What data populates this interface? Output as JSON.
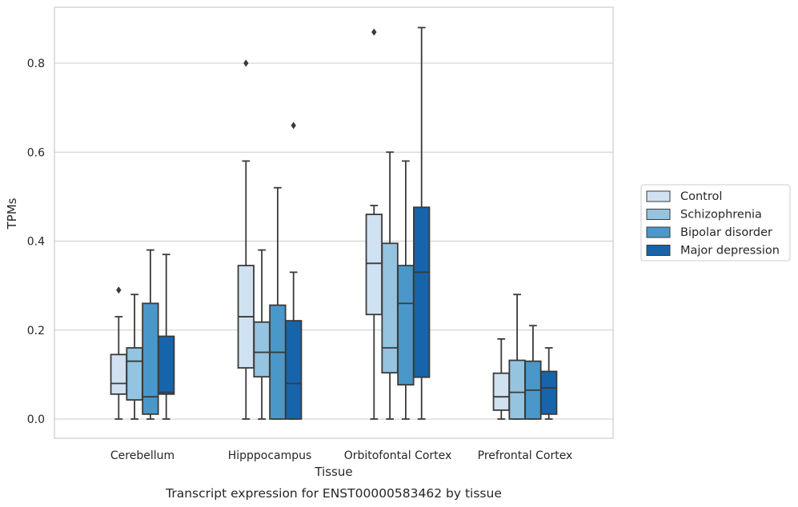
{
  "caption": "Transcript expression for ENST00000583462 by tissue",
  "chart_data": {
    "type": "boxplot",
    "xlabel": "Tissue",
    "ylabel": "TPMs",
    "ylim": [
      -0.04,
      0.93
    ],
    "yticks": [
      0.0,
      0.2,
      0.4,
      0.6,
      0.8
    ],
    "ytick_labels": [
      "0.0",
      "0.2",
      "0.4",
      "0.6",
      "0.8"
    ],
    "grid": "horizontal",
    "legend_position": "right",
    "categories": [
      "Cerebellum",
      "Hipppocampus",
      "Orbitofontal Cortex",
      "Prefrontal Cortex"
    ],
    "series": [
      {
        "name": "Control",
        "color": "#d0e1f2",
        "boxes": [
          {
            "whislo": 0.0,
            "q1": 0.056,
            "med": 0.08,
            "q3": 0.145,
            "whishi": 0.23,
            "fliers": [
              0.29
            ]
          },
          {
            "whislo": 0.0,
            "q1": 0.115,
            "med": 0.23,
            "q3": 0.345,
            "whishi": 0.58,
            "fliers": [
              0.8
            ]
          },
          {
            "whislo": 0.0,
            "q1": 0.235,
            "med": 0.35,
            "q3": 0.46,
            "whishi": 0.48,
            "fliers": [
              0.87
            ]
          },
          {
            "whislo": 0.0,
            "q1": 0.02,
            "med": 0.05,
            "q3": 0.103,
            "whishi": 0.18,
            "fliers": []
          }
        ]
      },
      {
        "name": "Schizophrenia",
        "color": "#94c4df",
        "boxes": [
          {
            "whislo": 0.0,
            "q1": 0.043,
            "med": 0.13,
            "q3": 0.16,
            "whishi": 0.28,
            "fliers": []
          },
          {
            "whislo": 0.0,
            "q1": 0.095,
            "med": 0.15,
            "q3": 0.218,
            "whishi": 0.38,
            "fliers": []
          },
          {
            "whislo": 0.0,
            "q1": 0.104,
            "med": 0.16,
            "q3": 0.395,
            "whishi": 0.6,
            "fliers": []
          },
          {
            "whislo": 0.0,
            "q1": 0.0,
            "med": 0.06,
            "q3": 0.132,
            "whishi": 0.28,
            "fliers": []
          }
        ]
      },
      {
        "name": "Bipolar disorder",
        "color": "#4a98c9",
        "boxes": [
          {
            "whislo": 0.0,
            "q1": 0.011,
            "med": 0.05,
            "q3": 0.26,
            "whishi": 0.38,
            "fliers": []
          },
          {
            "whislo": 0.0,
            "q1": 0.0,
            "med": 0.15,
            "q3": 0.256,
            "whishi": 0.52,
            "fliers": []
          },
          {
            "whislo": 0.0,
            "q1": 0.077,
            "med": 0.26,
            "q3": 0.345,
            "whishi": 0.58,
            "fliers": []
          },
          {
            "whislo": 0.0,
            "q1": 0.0,
            "med": 0.065,
            "q3": 0.13,
            "whishi": 0.21,
            "fliers": []
          }
        ]
      },
      {
        "name": "Major depression",
        "color": "#1764ab",
        "boxes": [
          {
            "whislo": 0.0,
            "q1": 0.056,
            "med": 0.06,
            "q3": 0.186,
            "whishi": 0.37,
            "fliers": []
          },
          {
            "whislo": 0.0,
            "q1": 0.0,
            "med": 0.08,
            "q3": 0.221,
            "whishi": 0.33,
            "fliers": [
              0.66
            ]
          },
          {
            "whislo": 0.0,
            "q1": 0.094,
            "med": 0.33,
            "q3": 0.476,
            "whishi": 0.88,
            "fliers": []
          },
          {
            "whislo": 0.0,
            "q1": 0.011,
            "med": 0.07,
            "q3": 0.107,
            "whishi": 0.16,
            "fliers": []
          }
        ]
      }
    ]
  }
}
